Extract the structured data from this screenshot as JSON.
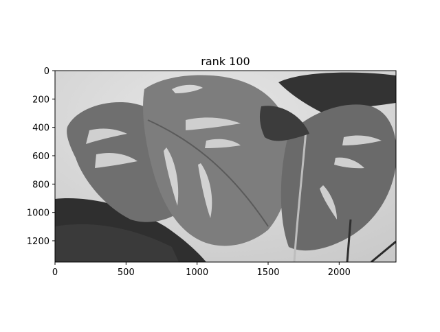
{
  "figure": {
    "title": "rank 100",
    "image_subject": "monstera-leaves-grayscale",
    "xaxis": {
      "ticks": [
        0,
        500,
        1000,
        1500,
        2000
      ],
      "tick_labels": [
        "0",
        "500",
        "1000",
        "1500",
        "2000"
      ],
      "range": [
        0,
        2400
      ]
    },
    "yaxis": {
      "ticks": [
        0,
        200,
        400,
        600,
        800,
        1000,
        1200
      ],
      "tick_labels": [
        "0",
        "200",
        "400",
        "600",
        "800",
        "1000",
        "1200"
      ],
      "range": [
        1350,
        0
      ]
    },
    "colors": {
      "background": "#ffffff",
      "axes": "#000000",
      "wall": "#d9d9d9",
      "leaf_dark": "#2f2f2f",
      "leaf_mid": "#6a6a6a",
      "leaf_light": "#8f8f8f"
    }
  }
}
